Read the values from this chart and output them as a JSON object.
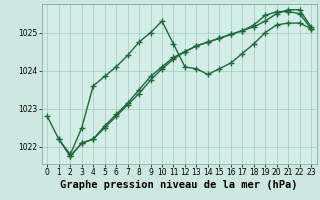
{
  "xlabel": "Graphe pression niveau de la mer (hPa)",
  "background_color": "#cce8e0",
  "plot_bg_color": "#d5ede8",
  "grid_color": "#99ccbb",
  "line_color": "#1a6b3a",
  "xlim": [
    -0.5,
    23.5
  ],
  "ylim": [
    1021.55,
    1025.75
  ],
  "yticks": [
    1022,
    1023,
    1024,
    1025
  ],
  "xticks": [
    0,
    1,
    2,
    3,
    4,
    5,
    6,
    7,
    8,
    9,
    10,
    11,
    12,
    13,
    14,
    15,
    16,
    17,
    18,
    19,
    20,
    21,
    22,
    23
  ],
  "line1_x": [
    0,
    1,
    2,
    3,
    4,
    5,
    6,
    7,
    8,
    9,
    10,
    11,
    12,
    13,
    14,
    15,
    16,
    17,
    18,
    19,
    20,
    21,
    22,
    23
  ],
  "line1_y": [
    1022.8,
    1022.2,
    1021.8,
    1022.5,
    1023.6,
    1023.85,
    1024.1,
    1024.4,
    1024.75,
    1025.0,
    1025.3,
    1024.7,
    1024.1,
    1024.05,
    1023.9,
    1024.05,
    1024.2,
    1024.45,
    1024.7,
    1025.0,
    1025.2,
    1025.25,
    1025.25,
    1025.1
  ],
  "line2_x": [
    2,
    3,
    4,
    5,
    6,
    7,
    8,
    9,
    10,
    11,
    12,
    13,
    14,
    15,
    16,
    17,
    18,
    19,
    20,
    21,
    22,
    23
  ],
  "line2_y": [
    1021.75,
    1022.1,
    1022.2,
    1022.5,
    1022.8,
    1023.1,
    1023.4,
    1023.75,
    1024.05,
    1024.3,
    1024.5,
    1024.65,
    1024.75,
    1024.85,
    1024.95,
    1025.05,
    1025.15,
    1025.3,
    1025.5,
    1025.6,
    1025.6,
    1025.15
  ],
  "line3_x": [
    1,
    2,
    3,
    4,
    5,
    6,
    7,
    8,
    9,
    10,
    11,
    12,
    13,
    14,
    15,
    16,
    17,
    18,
    19,
    20,
    21,
    22,
    23
  ],
  "line3_y": [
    1022.2,
    1021.75,
    1022.1,
    1022.2,
    1022.55,
    1022.85,
    1023.15,
    1023.5,
    1023.85,
    1024.1,
    1024.35,
    1024.5,
    1024.65,
    1024.75,
    1024.85,
    1024.95,
    1025.05,
    1025.2,
    1025.45,
    1025.55,
    1025.55,
    1025.5,
    1025.1
  ],
  "marker": "+",
  "marker_size": 4,
  "line_width": 1.0,
  "xlabel_fontsize": 7.5,
  "tick_fontsize": 5.5
}
